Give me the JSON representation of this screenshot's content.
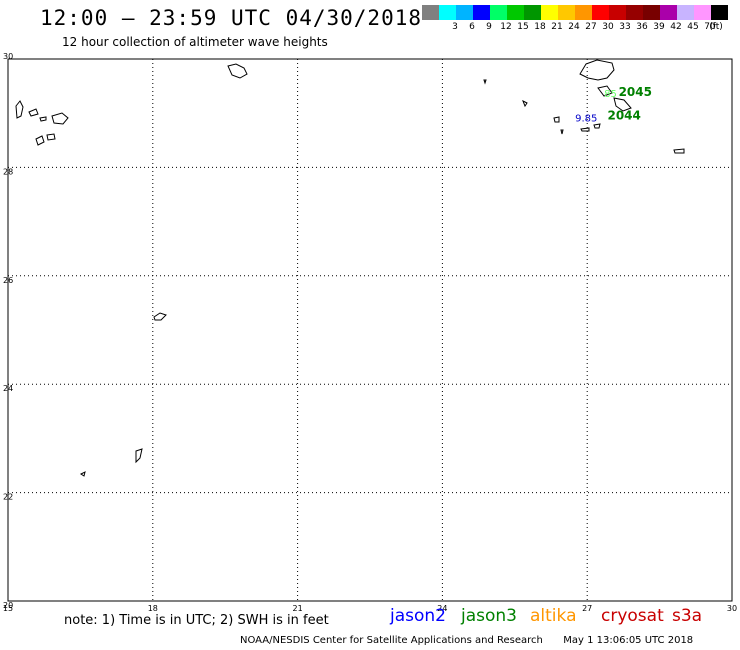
{
  "title": "12:00 – 23:59 UTC 04/30/2018",
  "subtitle": "12 hour collection of altimeter wave heights",
  "legend": {
    "unit": "(ft)",
    "swatches": [
      {
        "label": "",
        "color": "#808080"
      },
      {
        "label": "3",
        "color": "#00ffff"
      },
      {
        "label": "6",
        "color": "#00b4ff"
      },
      {
        "label": "9",
        "color": "#0000ff"
      },
      {
        "label": "12",
        "color": "#00ff66"
      },
      {
        "label": "15",
        "color": "#00c800"
      },
      {
        "label": "18",
        "color": "#009600"
      },
      {
        "label": "21",
        "color": "#ffff00"
      },
      {
        "label": "24",
        "color": "#ffc800"
      },
      {
        "label": "27",
        "color": "#ff9600"
      },
      {
        "label": "30",
        "color": "#ff0000"
      },
      {
        "label": "33",
        "color": "#c80000"
      },
      {
        "label": "36",
        "color": "#960000"
      },
      {
        "label": "39",
        "color": "#780000"
      },
      {
        "label": "42",
        "color": "#aa00aa"
      },
      {
        "label": "45",
        "color": "#c8b4ff"
      },
      {
        "label": "70",
        "color": "#ff96ff"
      },
      {
        "label": "",
        "color": "#000000"
      }
    ]
  },
  "map": {
    "lon_range": [
      15,
      30
    ],
    "lat_range": [
      20,
      30
    ],
    "lon_ticks": [
      "15",
      "18",
      "21",
      "24",
      "27",
      "30"
    ],
    "lat_ticks": [
      "30",
      "28",
      "26",
      "24",
      "22",
      "20"
    ],
    "observations": [
      {
        "id": "obs-9-85",
        "value": "9.85",
        "color": "#0000c8",
        "lon": 26.75,
        "lat": 28.85
      },
      {
        "id": "obs-faint",
        "value": "85",
        "color": "#66ff66",
        "lon": 27.35,
        "lat": 29.3
      }
    ],
    "time_labels": [
      {
        "id": "pass-2045",
        "value": "2045",
        "color": "#008000",
        "lon": 27.65,
        "lat": 29.32
      },
      {
        "id": "pass-2044",
        "value": "2044",
        "color": "#008000",
        "lon": 27.42,
        "lat": 28.88
      }
    ]
  },
  "note": "note: 1) Time is in UTC; 2) SWH is in feet",
  "satellites": [
    {
      "name": "jason2",
      "color": "#0000ff"
    },
    {
      "name": "jason3",
      "color": "#008000"
    },
    {
      "name": "altika",
      "color": "#ff9600"
    },
    {
      "name": "cryosat",
      "color": "#c80000"
    },
    {
      "name": "s3a",
      "color": "#c80000"
    }
  ],
  "footer": {
    "org": "NOAA/NESDIS Center for Satellite Applications and Research",
    "timestamp": "May  1 13:06:05 UTC 2018"
  }
}
